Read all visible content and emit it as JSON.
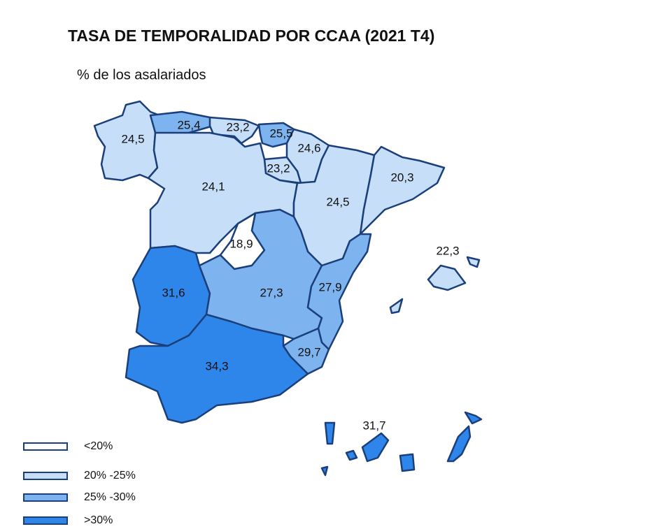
{
  "title": "TASA DE TEMPORALIDAD POR CCAA (2021 T4)",
  "subtitle": "% de los asalariados",
  "regions": {
    "values": [
      24.5,
      25.4,
      23.2,
      25.5,
      24.6,
      23.2,
      24.1,
      24.5,
      20.3,
      18.9,
      31.6,
      27.3,
      27.9,
      22.3,
      29.7,
      34.3,
      31.7
    ],
    "value_labels": [
      "24,5",
      "25,4",
      "23,2",
      "25,5",
      "24,6",
      "23,2",
      "24,1",
      "24,5",
      "20,3",
      "18,9",
      "31,6",
      "27,3",
      "27,9",
      "22,3",
      "29,7",
      "34,3",
      "31,7"
    ]
  },
  "legend": {
    "breaks": [
      20,
      25,
      30
    ],
    "items": [
      {
        "label": "<20%",
        "color": "#ffffff"
      },
      {
        "label": "20% -25%",
        "color": "#c6def7"
      },
      {
        "label": "25% -30%",
        "color": "#7db4ef"
      },
      {
        "label": ">30%",
        "color": "#2f86ea"
      }
    ]
  }
}
